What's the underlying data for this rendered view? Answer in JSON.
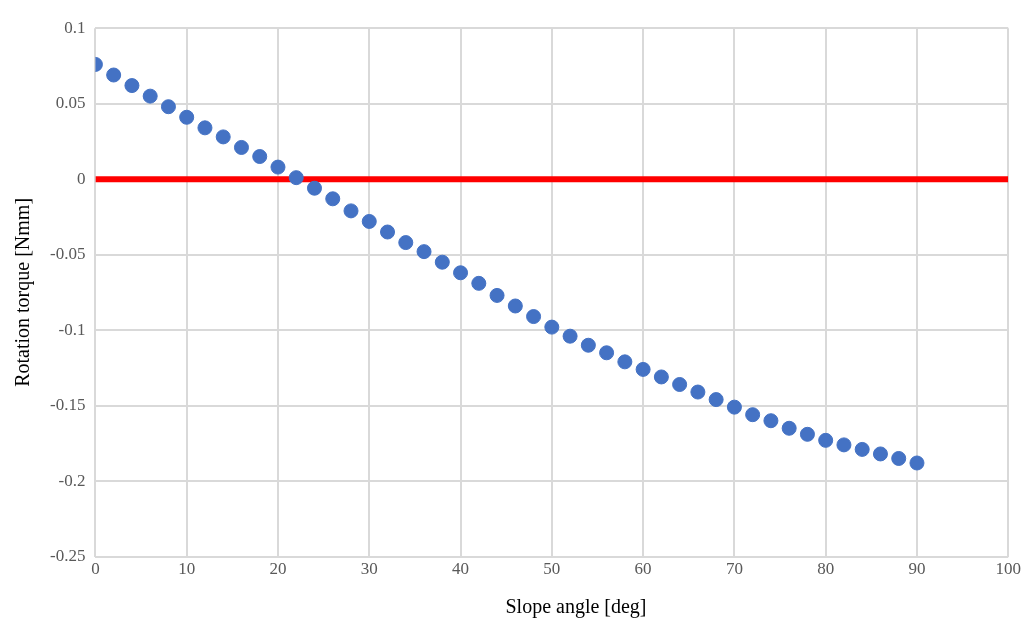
{
  "chart_data": {
    "type": "scatter",
    "xlabel": "Slope angle [deg]",
    "ylabel": "Rotation torque [Nmm]",
    "x": [
      0,
      2,
      4,
      6,
      8,
      10,
      12,
      14,
      16,
      18,
      20,
      22,
      24,
      26,
      28,
      30,
      32,
      34,
      36,
      38,
      40,
      42,
      44,
      46,
      48,
      50,
      52,
      54,
      56,
      58,
      60,
      62,
      64,
      66,
      68,
      70,
      72,
      74,
      76,
      78,
      80,
      82,
      84,
      86,
      88,
      90
    ],
    "series": [
      {
        "color": "#4472c4",
        "values": [
          0.076,
          0.069,
          0.062,
          0.055,
          0.048,
          0.041,
          0.034,
          0.028,
          0.021,
          0.015,
          0.008,
          0.001,
          -0.006,
          -0.013,
          -0.021,
          -0.028,
          -0.035,
          -0.042,
          -0.048,
          -0.055,
          -0.062,
          -0.069,
          -0.077,
          -0.084,
          -0.091,
          -0.098,
          -0.104,
          -0.11,
          -0.115,
          -0.121,
          -0.126,
          -0.131,
          -0.136,
          -0.141,
          -0.146,
          -0.151,
          -0.156,
          -0.16,
          -0.165,
          -0.169,
          -0.173,
          -0.176,
          -0.179,
          -0.182,
          -0.185,
          -0.188
        ]
      }
    ],
    "xlim": [
      0,
      100
    ],
    "xticks": [
      0,
      10,
      20,
      30,
      40,
      50,
      60,
      70,
      80,
      90,
      100
    ],
    "ylim": [
      -0.25,
      0.1
    ],
    "yticks": [
      -0.25,
      -0.2,
      -0.15,
      -0.1,
      -0.05,
      0,
      0.05,
      0.1
    ],
    "ref_lines": [
      {
        "axis": "y",
        "value": 0,
        "color": "#ff0000"
      }
    ],
    "grid": true,
    "marker": "circle"
  }
}
